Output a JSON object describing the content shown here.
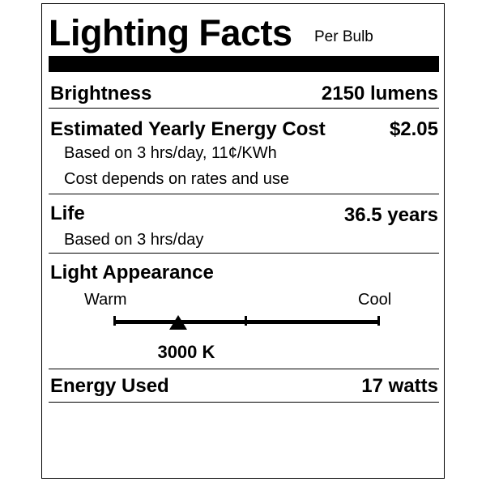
{
  "header": {
    "title": "Lighting Facts",
    "per": "Per Bulb"
  },
  "brightness": {
    "label": "Brightness",
    "value": "2150 lumens"
  },
  "energy_cost": {
    "label": "Estimated Yearly Energy Cost",
    "value": "$2.05",
    "note1": "Based on 3 hrs/day, 11¢/KWh",
    "note2": "Cost depends on rates and use"
  },
  "life": {
    "label": "Life",
    "value": "36.5 years",
    "note": "Based on 3 hrs/day"
  },
  "appearance": {
    "label": "Light Appearance",
    "warm": "Warm",
    "cool": "Cool",
    "value": "3000 K",
    "marker_position": 0.24
  },
  "energy_used": {
    "label": "Energy Used",
    "value": "17 watts"
  }
}
